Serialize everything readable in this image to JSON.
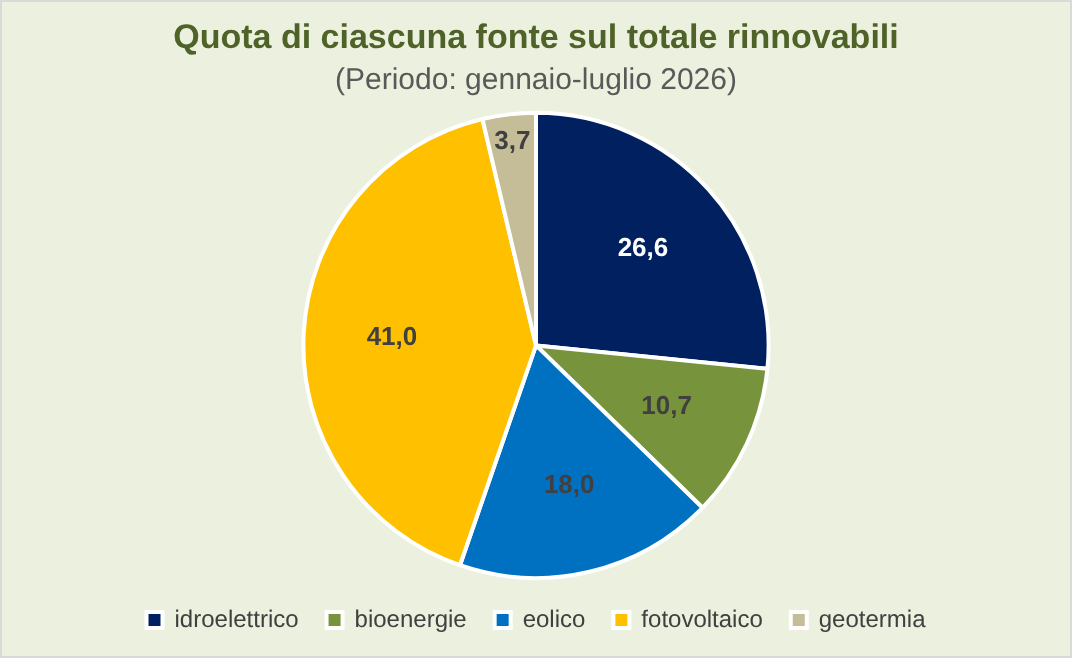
{
  "chart_data": {
    "type": "pie",
    "title": "Quota di ciascuna fonte sul totale rinnovabili",
    "subtitle": "(Periodo: gennaio-luglio 2026)",
    "categories": [
      "idroelettrico",
      "bioenergie",
      "eolico",
      "fotovoltaico",
      "geotermia"
    ],
    "values": [
      26.6,
      10.7,
      18.0,
      41.0,
      3.7
    ],
    "colors": [
      "#002060",
      "#77933c",
      "#0070c0",
      "#ffc000",
      "#c4bd97"
    ],
    "value_labels": [
      "26,6",
      "10,7",
      "18,0",
      "41,0",
      "3,7"
    ],
    "legend": "bottom"
  }
}
